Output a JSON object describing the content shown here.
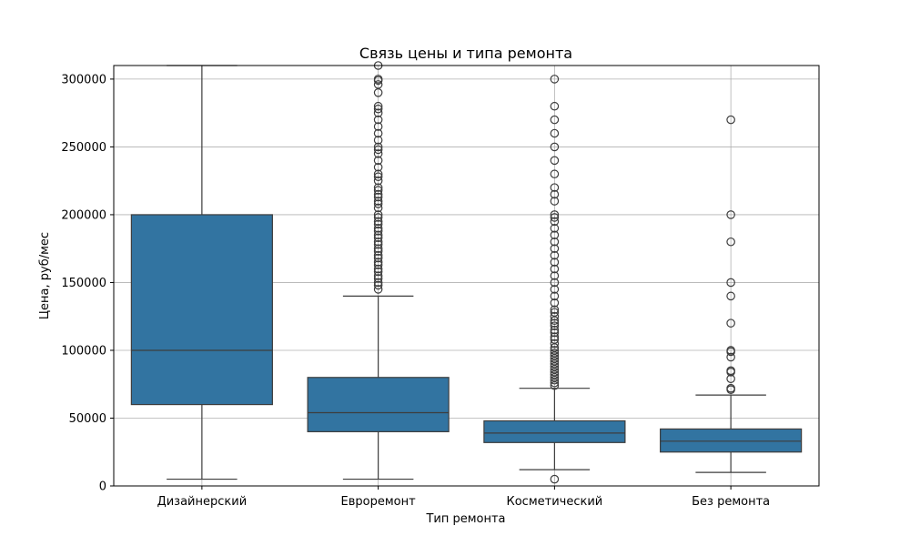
{
  "chart_data": {
    "type": "box",
    "title": "Связь цены и типа ремонта",
    "xlabel": "Тип ремонта",
    "ylabel": "Цена, руб/мес",
    "ylim": [
      0,
      310000
    ],
    "yticks": [
      0,
      50000,
      100000,
      150000,
      200000,
      250000,
      300000
    ],
    "grid": true,
    "colors": {
      "box": "#3274a1",
      "line": "#3d3d3d",
      "grid": "#b0b0b0"
    },
    "categories": [
      "Дизайнерский",
      "Евроремонт",
      "Косметический",
      "Без ремонта"
    ],
    "boxes": [
      {
        "whisker_low": 5000,
        "q1": 60000,
        "median": 100000,
        "q3": 200000,
        "whisker_high": 310000,
        "outliers": []
      },
      {
        "whisker_low": 5000,
        "q1": 40000,
        "median": 54000,
        "q3": 80000,
        "whisker_high": 140000,
        "outliers": [
          145000,
          148000,
          150000,
          153000,
          155000,
          158000,
          160000,
          163000,
          165000,
          168000,
          170000,
          173000,
          175000,
          178000,
          180000,
          183000,
          185000,
          188000,
          190000,
          193000,
          195000,
          198000,
          200000,
          205000,
          208000,
          210000,
          213000,
          215000,
          218000,
          220000,
          225000,
          228000,
          230000,
          235000,
          240000,
          245000,
          248000,
          250000,
          255000,
          260000,
          265000,
          270000,
          275000,
          278000,
          280000,
          290000,
          296000,
          299000,
          300000,
          310000
        ]
      },
      {
        "whisker_low": 12000,
        "q1": 32000,
        "median": 39000,
        "q3": 48000,
        "whisker_high": 72000,
        "outliers": [
          5000,
          74000,
          76000,
          78000,
          80000,
          82000,
          84000,
          86000,
          88000,
          90000,
          92000,
          94000,
          96000,
          98000,
          100000,
          102000,
          105000,
          108000,
          110000,
          113000,
          115000,
          118000,
          120000,
          122000,
          125000,
          128000,
          130000,
          135000,
          140000,
          145000,
          150000,
          155000,
          160000,
          165000,
          170000,
          175000,
          180000,
          185000,
          190000,
          195000,
          198000,
          200000,
          210000,
          215000,
          220000,
          230000,
          240000,
          250000,
          260000,
          270000,
          280000,
          300000
        ]
      },
      {
        "whisker_low": 10000,
        "q1": 25000,
        "median": 33000,
        "q3": 42000,
        "whisker_high": 67000,
        "outliers": [
          71000,
          72000,
          79000,
          84000,
          85000,
          95000,
          99000,
          100000,
          120000,
          140000,
          150000,
          180000,
          200000,
          270000
        ]
      }
    ]
  }
}
